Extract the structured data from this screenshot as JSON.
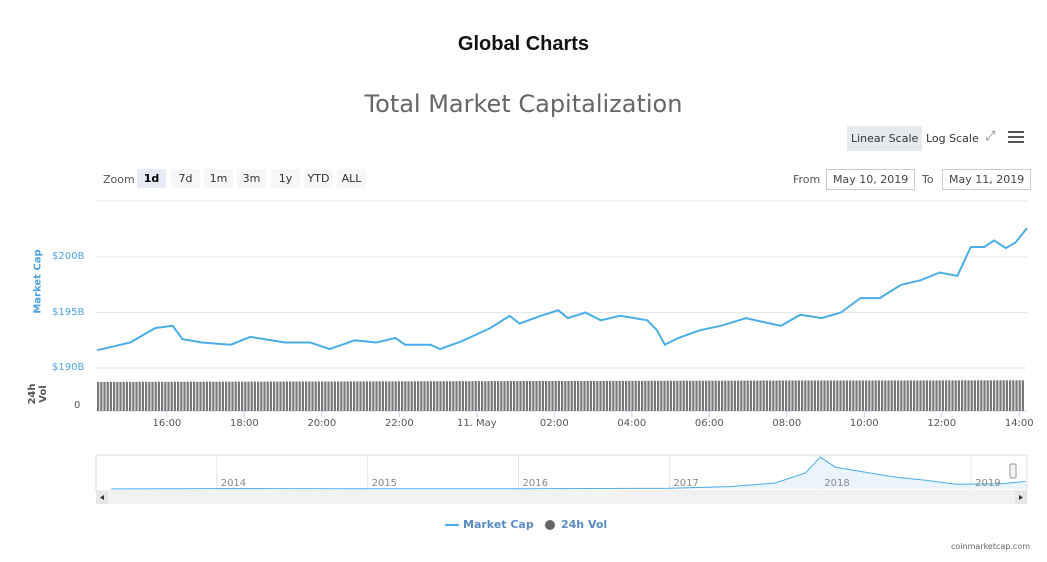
{
  "page_title": "Global Charts",
  "toolbar": {
    "linear_scale": "Linear Scale",
    "log_scale": "Log Scale",
    "fullscreen_icon": "expand-icon",
    "menu_icon": "hamburger-icon",
    "zoom_label": "Zoom",
    "zoom_buttons": [
      "1d",
      "7d",
      "1m",
      "3m",
      "1y",
      "YTD",
      "ALL"
    ],
    "zoom_active": "1d",
    "from_label": "From",
    "from_value": "May 10, 2019",
    "to_label": "To",
    "to_value": "May 11, 2019"
  },
  "chart_data": {
    "type": "line",
    "title": "Total Market Capitalization",
    "ylabel": "Market Cap",
    "ylabel2": "24h Vol",
    "y_ticks": [
      "$190B",
      "$195B",
      "$200B"
    ],
    "y2_ticks": [
      "0"
    ],
    "ylim": [
      190,
      205
    ],
    "x_unit": "hours since May 10, 2019 00:00",
    "xlim": [
      14.17,
      38.2
    ],
    "x_ticks": [
      {
        "h": 16,
        "label": "16:00"
      },
      {
        "h": 18,
        "label": "18:00"
      },
      {
        "h": 20,
        "label": "20:00"
      },
      {
        "h": 22,
        "label": "22:00"
      },
      {
        "h": 24,
        "label": "11. May"
      },
      {
        "h": 26,
        "label": "02:00"
      },
      {
        "h": 28,
        "label": "04:00"
      },
      {
        "h": 30,
        "label": "06:00"
      },
      {
        "h": 32,
        "label": "08:00"
      },
      {
        "h": 34,
        "label": "10:00"
      },
      {
        "h": 36,
        "label": "12:00"
      },
      {
        "h": 38,
        "label": "14:00"
      }
    ],
    "series": [
      {
        "name": "Market Cap",
        "color": "#4aaee8",
        "x": [
          14.2,
          15.05,
          15.7,
          16.15,
          16.4,
          16.9,
          17.65,
          18.15,
          19.05,
          19.7,
          20.2,
          20.85,
          21.4,
          21.9,
          22.15,
          22.8,
          23.05,
          23.6,
          24.35,
          24.85,
          25.1,
          25.65,
          26.1,
          26.35,
          26.8,
          27.2,
          27.7,
          28.4,
          28.65,
          28.85,
          29.2,
          29.75,
          30.3,
          30.95,
          31.45,
          31.85,
          32.35,
          32.9,
          33.4,
          33.9,
          34.4,
          34.95,
          35.45,
          35.95,
          36.4,
          36.75,
          37.1,
          37.35,
          37.65,
          37.9,
          38.2
        ],
        "values": [
          191.6,
          192.3,
          193.6,
          193.8,
          192.6,
          192.3,
          192.1,
          192.8,
          192.3,
          192.3,
          191.7,
          192.5,
          192.3,
          192.7,
          192.1,
          192.1,
          191.7,
          192.4,
          193.6,
          194.7,
          194.0,
          194.7,
          195.2,
          194.5,
          195.0,
          194.3,
          194.7,
          194.3,
          193.4,
          192.1,
          192.7,
          193.4,
          193.8,
          194.5,
          194.1,
          193.8,
          194.8,
          194.5,
          195.0,
          196.3,
          196.3,
          197.5,
          197.9,
          198.6,
          198.3,
          200.9,
          200.9,
          201.5,
          200.8,
          201.3,
          202.6
        ]
      },
      {
        "name": "24h Vol",
        "color": "#7a7a7a",
        "relative_level": [
          0.88,
          0.9,
          0.92,
          0.93
        ]
      }
    ],
    "navigator": {
      "x_labels": [
        "2014",
        "2015",
        "2016",
        "2017",
        "2018",
        "2019"
      ],
      "x": [
        2013.3,
        2014,
        2015,
        2016,
        2017,
        2017.4,
        2017.7,
        2017.9,
        2018.0,
        2018.1,
        2018.3,
        2018.5,
        2018.7,
        2018.9,
        2019.2,
        2019.36
      ],
      "values": [
        2,
        10,
        4,
        7,
        18,
        60,
        150,
        400,
        800,
        550,
        420,
        300,
        220,
        120,
        130,
        190
      ]
    },
    "legend": [
      {
        "name": "Market Cap",
        "icon": "line"
      },
      {
        "name": "24h Vol",
        "icon": "circle"
      }
    ],
    "legend_position": "bottom-center",
    "credit": "coinmarketcap.com"
  }
}
